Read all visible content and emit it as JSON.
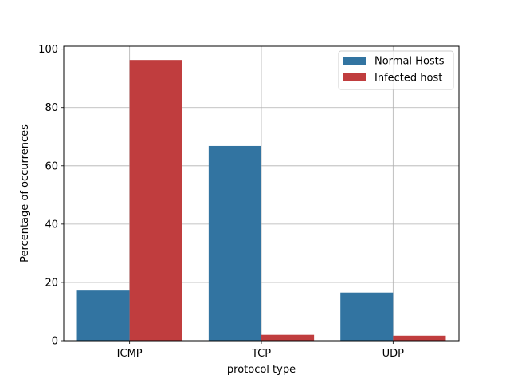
{
  "chart_data": {
    "type": "bar",
    "title": "",
    "xlabel": "protocol type",
    "ylabel": "Percentage of occurrences",
    "categories": [
      "ICMP",
      "TCP",
      "UDP"
    ],
    "series": [
      {
        "name": "Normal Hosts",
        "color": "#3274a1",
        "values": [
          17.2,
          66.8,
          16.5
        ]
      },
      {
        "name": "Infected host",
        "color": "#c03d3e",
        "values": [
          96.3,
          2.0,
          1.7
        ]
      }
    ],
    "ylim": [
      0,
      101
    ],
    "yticks": [
      0,
      20,
      40,
      60,
      80,
      100
    ],
    "grid": true,
    "legend_position": "top-right"
  }
}
